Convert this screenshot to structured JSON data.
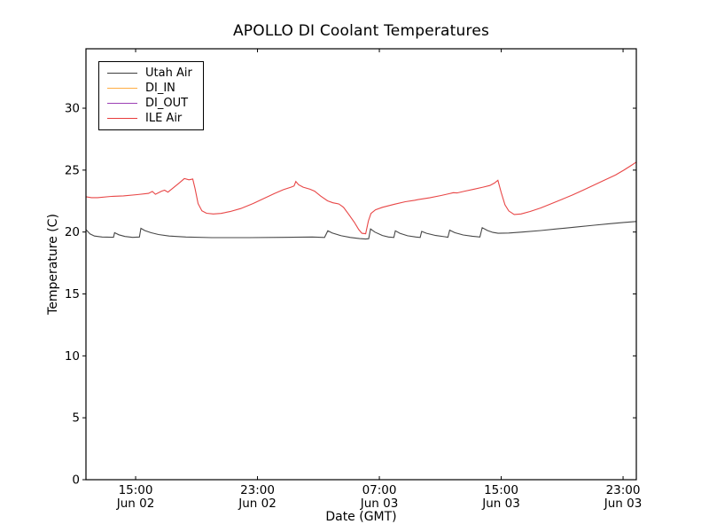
{
  "title": "APOLLO DI Coolant Temperatures",
  "axes": {
    "xlabel": "Date (GMT)",
    "ylabel": "Temperature (C)"
  },
  "legend": {
    "position": "upper left",
    "entries": [
      "Utah Air",
      "DI_IN",
      "DI_OUT",
      "ILE Air"
    ]
  },
  "chart_data": {
    "type": "line",
    "title": "APOLLO DI Coolant Temperatures",
    "xlabel": "Date (GMT)",
    "ylabel": "Temperature (C)",
    "x_unit": "hours since Jun 02 00:00 GMT",
    "xlim": [
      11.74,
      47.87
    ],
    "ylim": [
      0,
      34.8
    ],
    "yticks": [
      0,
      5,
      10,
      15,
      20,
      25,
      30
    ],
    "xticks": [
      {
        "t": 15,
        "time": "15:00",
        "date": "Jun 02"
      },
      {
        "t": 23,
        "time": "23:00",
        "date": "Jun 02"
      },
      {
        "t": 31,
        "time": "07:00",
        "date": "Jun 03"
      },
      {
        "t": 39,
        "time": "15:00",
        "date": "Jun 03"
      },
      {
        "t": 47,
        "time": "23:00",
        "date": "Jun 03"
      }
    ],
    "grid": false,
    "axis_color": "#000000",
    "series": [
      {
        "name": "Utah Air",
        "color": "#3d3d3d",
        "points": [
          [
            11.74,
            20.2
          ],
          [
            12.0,
            19.85
          ],
          [
            12.3,
            19.68
          ],
          [
            12.8,
            19.6
          ],
          [
            13.4,
            19.58
          ],
          [
            13.55,
            19.58
          ],
          [
            13.62,
            19.95
          ],
          [
            13.9,
            19.78
          ],
          [
            14.3,
            19.64
          ],
          [
            14.8,
            19.57
          ],
          [
            15.25,
            19.6
          ],
          [
            15.35,
            20.3
          ],
          [
            15.6,
            20.12
          ],
          [
            16.0,
            19.95
          ],
          [
            16.5,
            19.8
          ],
          [
            17.2,
            19.68
          ],
          [
            18.3,
            19.6
          ],
          [
            20.0,
            19.55
          ],
          [
            22.4,
            19.55
          ],
          [
            24.7,
            19.57
          ],
          [
            26.6,
            19.6
          ],
          [
            27.4,
            19.56
          ],
          [
            27.62,
            20.1
          ],
          [
            27.9,
            19.92
          ],
          [
            28.5,
            19.7
          ],
          [
            29.1,
            19.56
          ],
          [
            29.7,
            19.47
          ],
          [
            30.1,
            19.43
          ],
          [
            30.3,
            19.46
          ],
          [
            30.42,
            20.25
          ],
          [
            30.7,
            20.0
          ],
          [
            31.2,
            19.72
          ],
          [
            31.6,
            19.6
          ],
          [
            31.95,
            19.56
          ],
          [
            32.05,
            20.1
          ],
          [
            32.35,
            19.9
          ],
          [
            32.85,
            19.7
          ],
          [
            33.4,
            19.6
          ],
          [
            33.68,
            19.56
          ],
          [
            33.78,
            20.05
          ],
          [
            34.1,
            19.9
          ],
          [
            34.7,
            19.72
          ],
          [
            35.3,
            19.62
          ],
          [
            35.5,
            19.58
          ],
          [
            35.62,
            20.15
          ],
          [
            35.95,
            19.95
          ],
          [
            36.5,
            19.76
          ],
          [
            37.1,
            19.66
          ],
          [
            37.6,
            19.6
          ],
          [
            37.75,
            20.35
          ],
          [
            38.1,
            20.12
          ],
          [
            38.45,
            19.97
          ],
          [
            38.8,
            19.9
          ],
          [
            39.5,
            19.92
          ],
          [
            40.4,
            20.0
          ],
          [
            41.6,
            20.12
          ],
          [
            42.7,
            20.26
          ],
          [
            43.9,
            20.4
          ],
          [
            45.1,
            20.55
          ],
          [
            46.2,
            20.68
          ],
          [
            47.1,
            20.78
          ],
          [
            47.87,
            20.85
          ]
        ]
      },
      {
        "name": "DI_IN",
        "color": "#ffad42",
        "points": [
          [
            11.74,
            0
          ],
          [
            47.87,
            0
          ]
        ]
      },
      {
        "name": "DI_OUT",
        "color": "#9c3fb5",
        "points": [
          [
            11.74,
            0
          ],
          [
            47.87,
            0
          ]
        ]
      },
      {
        "name": "ILE Air",
        "color": "#e73c3c",
        "points": [
          [
            11.74,
            22.85
          ],
          [
            12.1,
            22.78
          ],
          [
            12.5,
            22.78
          ],
          [
            13.4,
            22.88
          ],
          [
            14.2,
            22.92
          ],
          [
            15.1,
            23.02
          ],
          [
            15.85,
            23.12
          ],
          [
            16.1,
            23.28
          ],
          [
            16.3,
            23.05
          ],
          [
            16.7,
            23.3
          ],
          [
            16.9,
            23.38
          ],
          [
            17.12,
            23.22
          ],
          [
            17.5,
            23.6
          ],
          [
            17.9,
            24.0
          ],
          [
            18.2,
            24.32
          ],
          [
            18.5,
            24.22
          ],
          [
            18.75,
            24.28
          ],
          [
            18.9,
            23.5
          ],
          [
            19.1,
            22.3
          ],
          [
            19.35,
            21.72
          ],
          [
            19.65,
            21.52
          ],
          [
            20.1,
            21.46
          ],
          [
            20.6,
            21.5
          ],
          [
            21.2,
            21.65
          ],
          [
            21.9,
            21.9
          ],
          [
            22.7,
            22.3
          ],
          [
            23.4,
            22.7
          ],
          [
            24.1,
            23.1
          ],
          [
            24.7,
            23.42
          ],
          [
            25.2,
            23.62
          ],
          [
            25.4,
            23.72
          ],
          [
            25.52,
            24.08
          ],
          [
            25.7,
            23.82
          ],
          [
            26.0,
            23.62
          ],
          [
            26.45,
            23.46
          ],
          [
            26.75,
            23.3
          ],
          [
            27.15,
            22.9
          ],
          [
            27.6,
            22.52
          ],
          [
            27.95,
            22.36
          ],
          [
            28.35,
            22.26
          ],
          [
            28.65,
            22.0
          ],
          [
            29.0,
            21.4
          ],
          [
            29.35,
            20.8
          ],
          [
            29.65,
            20.2
          ],
          [
            29.85,
            19.9
          ],
          [
            30.1,
            19.86
          ],
          [
            30.28,
            20.9
          ],
          [
            30.45,
            21.5
          ],
          [
            30.75,
            21.8
          ],
          [
            31.2,
            22.0
          ],
          [
            32.0,
            22.25
          ],
          [
            32.7,
            22.45
          ],
          [
            33.3,
            22.56
          ],
          [
            33.55,
            22.62
          ],
          [
            34.3,
            22.76
          ],
          [
            35.05,
            22.95
          ],
          [
            35.6,
            23.1
          ],
          [
            35.85,
            23.18
          ],
          [
            36.1,
            23.16
          ],
          [
            36.6,
            23.3
          ],
          [
            37.2,
            23.46
          ],
          [
            37.8,
            23.62
          ],
          [
            38.25,
            23.76
          ],
          [
            38.55,
            23.95
          ],
          [
            38.78,
            24.18
          ],
          [
            39.0,
            23.2
          ],
          [
            39.25,
            22.2
          ],
          [
            39.5,
            21.7
          ],
          [
            39.85,
            21.42
          ],
          [
            40.3,
            21.46
          ],
          [
            40.9,
            21.66
          ],
          [
            41.6,
            21.95
          ],
          [
            42.3,
            22.3
          ],
          [
            43.0,
            22.65
          ],
          [
            43.7,
            23.0
          ],
          [
            44.4,
            23.4
          ],
          [
            45.1,
            23.8
          ],
          [
            45.8,
            24.2
          ],
          [
            46.5,
            24.6
          ],
          [
            47.05,
            25.0
          ],
          [
            47.5,
            25.35
          ],
          [
            47.87,
            25.65
          ]
        ]
      }
    ]
  }
}
